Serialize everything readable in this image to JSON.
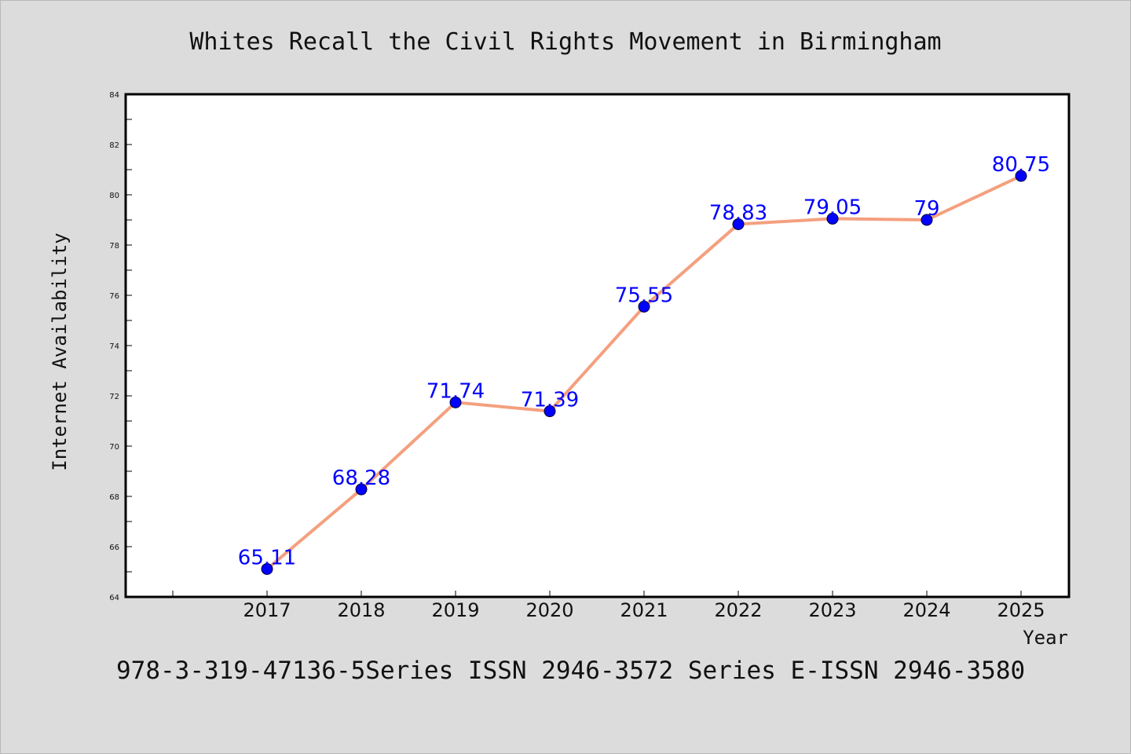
{
  "chart_data": {
    "type": "line",
    "title": "Whites Recall the Civil Rights Movement in Birmingham",
    "xlabel": "Year",
    "ylabel": "Internet Availability",
    "categories": [
      "2017",
      "2018",
      "2019",
      "2020",
      "2021",
      "2022",
      "2023",
      "2024",
      "2025"
    ],
    "values": [
      65.11,
      68.28,
      71.74,
      71.39,
      75.55,
      78.83,
      79.05,
      79,
      80.75
    ],
    "data_labels": [
      "65.11",
      "68.28",
      "71.74",
      "71.39",
      "75.55",
      "78.83",
      "79.05",
      "79",
      "80.75"
    ],
    "ylim": [
      64,
      84
    ],
    "yticks": [
      "64",
      "66",
      "68",
      "70",
      "72",
      "74",
      "76",
      "78",
      "80",
      "82",
      "84"
    ],
    "grid": false,
    "legend": "none",
    "colors": {
      "line": "#f4a07f",
      "marker": "#0000ff",
      "data_label": "#0000ff",
      "background": "#dcdcdc",
      "plot_background": "#ffffff"
    }
  },
  "footer": {
    "text": "978-3-319-47136-5Series ISSN 2946-3572 Series E-ISSN 2946-3580"
  }
}
